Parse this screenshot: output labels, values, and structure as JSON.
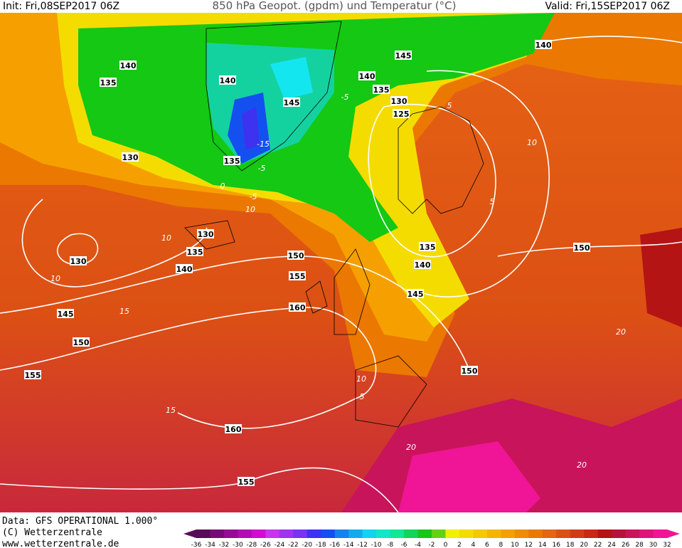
{
  "header": {
    "init": "Init: Fri,08SEP2017 06Z",
    "title": "850 hPa Geopot. (gpdm) und Temperatur (°C)",
    "valid": "Valid: Fri,15SEP2017 06Z"
  },
  "footer": {
    "source": "Data: GFS OPERATIONAL 1.000°",
    "copyright": "(C) Wetterzentrale",
    "url": "www.wetterzentrale.de"
  },
  "geopotential_labels": [
    140,
    135,
    140,
    145,
    140,
    140,
    135,
    145,
    130,
    125,
    130,
    135,
    130,
    135,
    130,
    140,
    150,
    155,
    160,
    135,
    140,
    145,
    150,
    145,
    150,
    155,
    150,
    160,
    155
  ],
  "temperature_labels": [
    10,
    10,
    15,
    15,
    10,
    5,
    -5,
    -15,
    -5,
    -5,
    10,
    0,
    10,
    5,
    20,
    20,
    20,
    5
  ],
  "legend": {
    "labels": [
      -36,
      -34,
      -32,
      -30,
      -28,
      -26,
      -24,
      -22,
      -20,
      -18,
      -16,
      -14,
      -12,
      -10,
      -8,
      -6,
      -4,
      -2,
      0,
      2,
      4,
      6,
      8,
      10,
      12,
      14,
      16,
      18,
      20,
      22,
      24,
      26,
      28,
      30,
      32
    ],
    "colors": [
      "#5a0a5a",
      "#780a78",
      "#960a96",
      "#b40ab4",
      "#d20ad2",
      "#c832f0",
      "#a032f0",
      "#7832f0",
      "#3c32f0",
      "#1450f0",
      "#1482f0",
      "#14aaf0",
      "#14d2f0",
      "#14e6c8",
      "#14e696",
      "#14d25a",
      "#14c814",
      "#64d214",
      "#f0f000",
      "#f5dc00",
      "#f5c800",
      "#f5b400",
      "#f5a000",
      "#f08c00",
      "#eb7800",
      "#e66414",
      "#dc5014",
      "#d23c14",
      "#c82814",
      "#b41414",
      "#b4143c",
      "#c8145a",
      "#dc1478",
      "#f01496"
    ]
  }
}
